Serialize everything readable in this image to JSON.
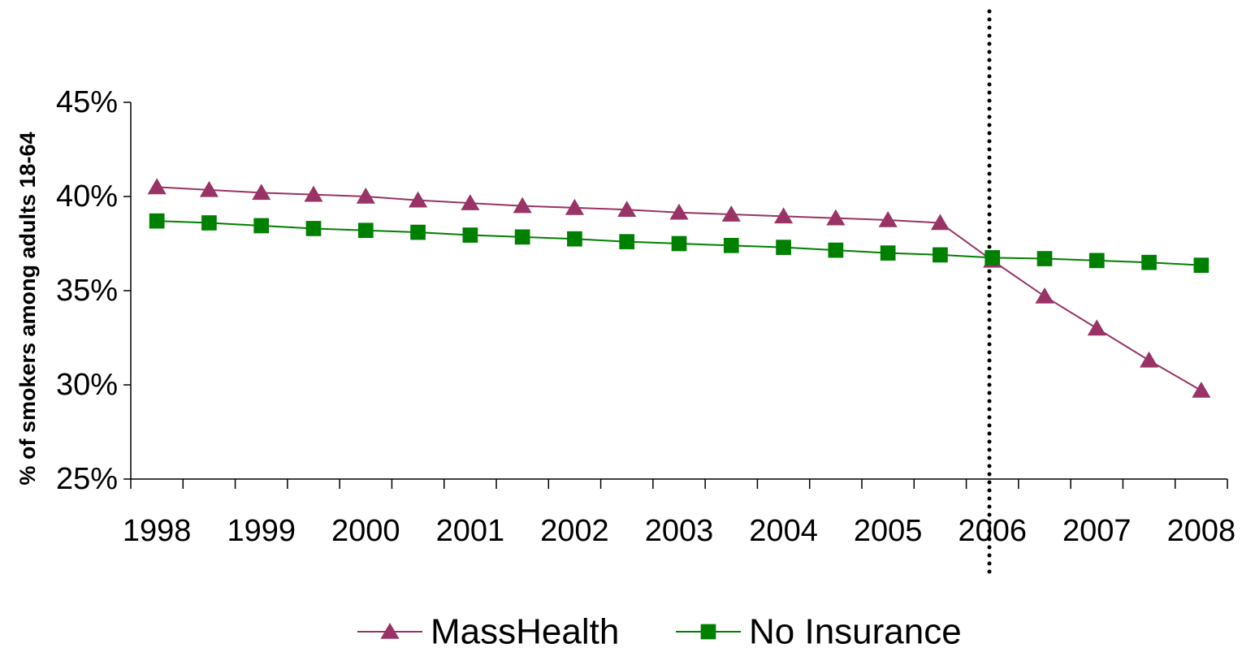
{
  "chart_data": {
    "type": "line",
    "y_axis_label": "% of smokers among adults 18-64",
    "categories": [
      "1998",
      null,
      "1999",
      null,
      "2000",
      null,
      "2001",
      null,
      "2002",
      null,
      "2003",
      null,
      "2004",
      null,
      "2005",
      null,
      "2006",
      null,
      "2007",
      null,
      "2008"
    ],
    "series": [
      {
        "name": "MassHealth",
        "color": "#993366",
        "marker": "triangle",
        "values": [
          40.5,
          40.35,
          40.2,
          40.1,
          40.0,
          39.8,
          39.65,
          39.5,
          39.4,
          39.3,
          39.15,
          39.05,
          38.95,
          38.85,
          38.75,
          38.6,
          36.6,
          34.7,
          33.0,
          31.3,
          29.7
        ]
      },
      {
        "name": "No Insurance",
        "color": "#008000",
        "marker": "square",
        "values": [
          38.7,
          38.6,
          38.45,
          38.3,
          38.2,
          38.1,
          37.95,
          37.85,
          37.75,
          37.6,
          37.5,
          37.4,
          37.3,
          37.15,
          37.0,
          36.9,
          36.75,
          36.7,
          36.6,
          36.5,
          36.35
        ]
      }
    ],
    "ylim": [
      25,
      45
    ],
    "yticks": [
      {
        "value": 25,
        "label": "25%"
      },
      {
        "value": 30,
        "label": "30%"
      },
      {
        "value": 35,
        "label": "35%"
      },
      {
        "value": 40,
        "label": "40%"
      },
      {
        "value": 45,
        "label": "45%"
      }
    ],
    "grid": false,
    "legend": "bottom"
  }
}
